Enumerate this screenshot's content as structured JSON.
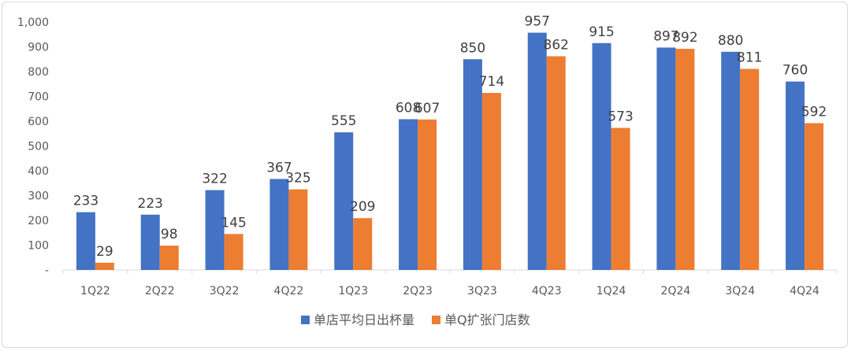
{
  "chart_data": {
    "type": "bar",
    "categories": [
      "1Q22",
      "2Q22",
      "3Q22",
      "4Q22",
      "1Q23",
      "2Q23",
      "3Q23",
      "4Q23",
      "1Q24",
      "2Q24",
      "3Q24",
      "4Q24"
    ],
    "series": [
      {
        "name": "单店平均日出杯量",
        "color": "#4472c4",
        "values": [
          233,
          223,
          322,
          367,
          555,
          608,
          850,
          957,
          915,
          897,
          880,
          760
        ]
      },
      {
        "name": "单Q扩张门店数",
        "color": "#ed7d31",
        "values": [
          29,
          98,
          145,
          325,
          209,
          607,
          714,
          862,
          573,
          892,
          811,
          592
        ]
      }
    ],
    "y_ticks": [
      "-",
      "100",
      "200",
      "300",
      "400",
      "500",
      "600",
      "700",
      "800",
      "900",
      "1,000"
    ],
    "ylim": [
      0,
      1000
    ],
    "grid": false,
    "legend": "bottom"
  }
}
